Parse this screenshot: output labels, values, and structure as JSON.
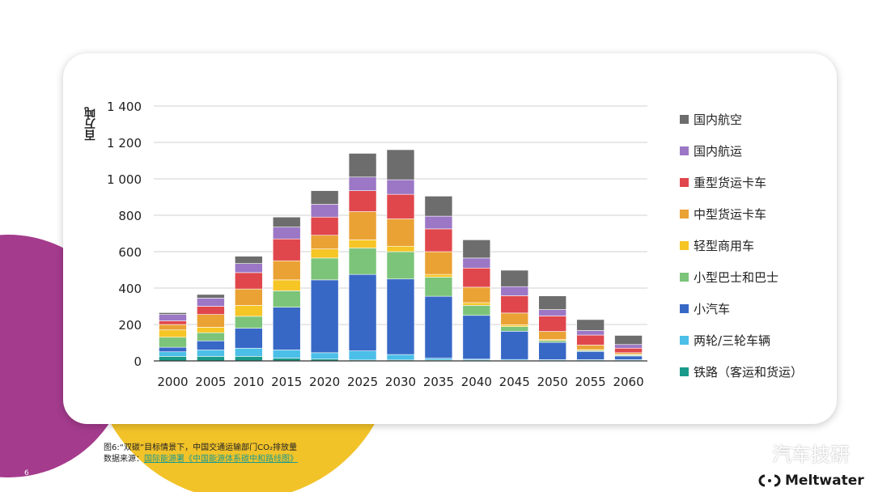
{
  "page": {
    "number": "6"
  },
  "chart_data": {
    "type": "bar",
    "stacked": true,
    "ylabel": "百万吨",
    "xlabel": "",
    "ylim": [
      0,
      1400
    ],
    "yticks": [
      0,
      200,
      400,
      600,
      800,
      1000,
      1200,
      1400
    ],
    "ytick_labels": [
      "0",
      "200",
      "400",
      "600",
      "800",
      "1 000",
      "1 200",
      "1 400"
    ],
    "grid": true,
    "legend_position": "right",
    "categories": [
      "2000",
      "2005",
      "2010",
      "2015",
      "2020",
      "2025",
      "2030",
      "2035",
      "2040",
      "2045",
      "2050",
      "2055",
      "2060"
    ],
    "series": [
      {
        "name": "铁路（客运和货运）",
        "color": "#1a9a8a",
        "values": [
          25,
          25,
          25,
          15,
          10,
          5,
          5,
          5,
          5,
          3,
          2,
          2,
          2
        ]
      },
      {
        "name": "两轮/三轮车辆",
        "color": "#4bbfe8",
        "values": [
          25,
          35,
          45,
          45,
          35,
          50,
          30,
          10,
          5,
          5,
          5,
          5,
          5
        ]
      },
      {
        "name": "小汽车",
        "color": "#3868c6",
        "values": [
          25,
          50,
          110,
          235,
          400,
          420,
          415,
          340,
          240,
          155,
          95,
          45,
          20
        ]
      },
      {
        "name": "小型巴士和巴士",
        "color": "#7cc47a",
        "values": [
          55,
          45,
          65,
          90,
          120,
          145,
          150,
          105,
          55,
          25,
          10,
          5,
          5
        ]
      },
      {
        "name": "轻型商用车",
        "color": "#f6c526",
        "values": [
          40,
          30,
          60,
          60,
          50,
          45,
          30,
          15,
          15,
          10,
          5,
          5,
          3
        ]
      },
      {
        "name": "中型货运卡车",
        "color": "#eaa235",
        "values": [
          30,
          70,
          90,
          105,
          75,
          155,
          150,
          125,
          85,
          65,
          45,
          25,
          10
        ]
      },
      {
        "name": "重型货运卡车",
        "color": "#e0474c",
        "values": [
          20,
          45,
          90,
          120,
          100,
          115,
          135,
          125,
          105,
          95,
          85,
          55,
          25
        ]
      },
      {
        "name": "国内航运",
        "color": "#9b77c6",
        "values": [
          35,
          45,
          50,
          65,
          70,
          75,
          80,
          70,
          55,
          50,
          35,
          25,
          20
        ]
      },
      {
        "name": "国内航空",
        "color": "#6d6d6d",
        "values": [
          10,
          20,
          40,
          55,
          75,
          130,
          165,
          110,
          100,
          90,
          75,
          60,
          50
        ]
      }
    ],
    "legend_order": [
      "国内航空",
      "国内航运",
      "重型货运卡车",
      "中型货运卡车",
      "轻型商用车",
      "小型巴士和巴士",
      "小汽车",
      "两轮/三轮车辆",
      "铁路（客运和货运）"
    ]
  },
  "caption": {
    "line1": "图6:“双碳”目标情景下，中国交通运输部门CO₂排放量",
    "line2_prefix": "数据来源：",
    "line2_link": "国际能源署《中国能源体系碳中和路线图》"
  },
  "watermark": {
    "text": "汽车技研",
    "icon": "wechat-icon"
  },
  "brand": {
    "name": "Meltwater",
    "icon": "meltwater-logo"
  },
  "colors": {
    "purple": "#a43b8d",
    "yellow": "#f2c329"
  }
}
